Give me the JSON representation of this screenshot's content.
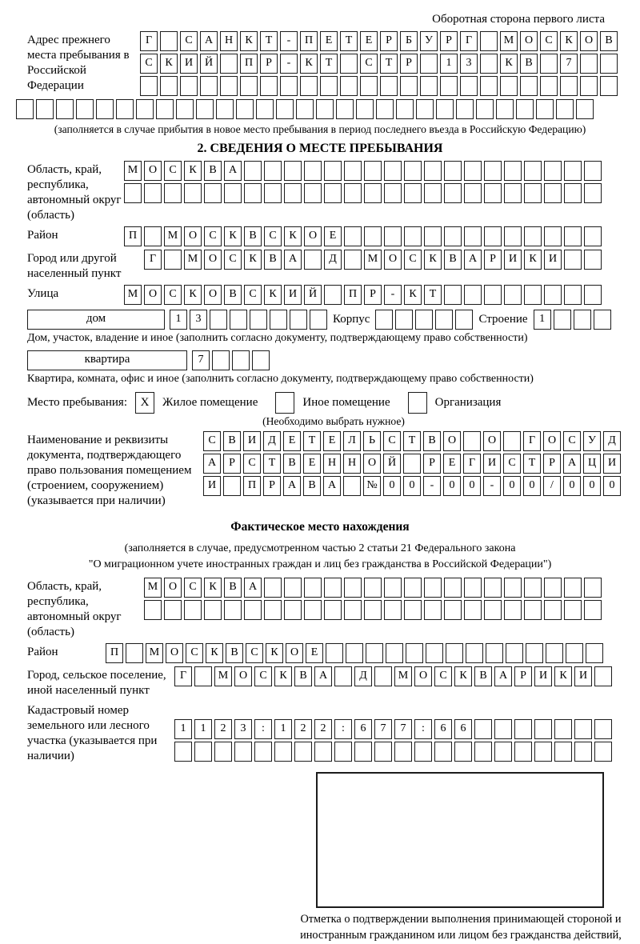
{
  "meta": {
    "header_note": "Оборотная сторона первого листа"
  },
  "prev_address": {
    "label": "Адрес прежнего места пребывания в Российской Федерации",
    "rows": [
      {
        "len": 24,
        "chars": "Г САНКТ-ПЕТЕРБУРГ МОСКОВ"
      },
      {
        "len": 24,
        "chars": "СКИЙ ПР-КТ СТР 13 КВ 7"
      },
      {
        "len": 24,
        "chars": ""
      },
      {
        "len": 29,
        "chars": ""
      }
    ],
    "footnote": "(заполняется в случае прибытия в новое место пребывания в период последнего въезда в Российскую Федерацию)"
  },
  "section2": {
    "title": "2. СВЕДЕНИЯ О МЕСТЕ ПРЕБЫВАНИЯ",
    "fields": {
      "region": {
        "label": "Область, край, республика, автономный округ (область)",
        "rows": [
          {
            "len": 24,
            "chars": "МОСКВА"
          },
          {
            "len": 24,
            "chars": ""
          }
        ]
      },
      "district": {
        "label": "Район",
        "rows": [
          {
            "len": 24,
            "chars": "П МОСКВСКОЕ"
          }
        ]
      },
      "city": {
        "label": "Город или другой населенный пункт",
        "rows": [
          {
            "len": 23,
            "chars": "Г МОСКВА Д МОСКВАРИКИ"
          }
        ]
      },
      "street": {
        "label": "Улица",
        "rows": [
          {
            "len": 24,
            "chars": "МОСКОВСКИЙ ПР-КТ"
          }
        ]
      }
    },
    "house_row": {
      "house_label": "дом",
      "house_boxes": {
        "len": 8,
        "chars": "13"
      },
      "korpus_label": "Корпус",
      "korpus_boxes": {
        "len": 5,
        "chars": ""
      },
      "stroenie_label": "Строение",
      "stroenie_boxes": {
        "len": 4,
        "chars": "1"
      }
    },
    "house_caption": "Дом, участок, владение и иное (заполнить согласно документу, подтверждающему право собственности)",
    "apartment_row": {
      "label": "квартира",
      "boxes": {
        "len": 4,
        "chars": "7"
      }
    },
    "apartment_caption": "Квартира, комната, офис и иное (заполнить согласно документу, подтверждающему право собственности)",
    "stay_type": {
      "label": "Место пребывания:",
      "options": [
        {
          "label": "Жилое помещение",
          "checked": true,
          "mark": "X"
        },
        {
          "label": "Иное помещение",
          "checked": false,
          "mark": ""
        },
        {
          "label": "Организация",
          "checked": false,
          "mark": ""
        }
      ],
      "note": "(Необходимо выбрать нужное)"
    },
    "document": {
      "label": "Наименование и реквизиты документа, подтверждающего право пользования помещением (строением, сооружением) (указывается при наличии)",
      "rows": [
        {
          "len": 21,
          "chars": "СВИДЕТЕЛЬСТВО О ГОСУД"
        },
        {
          "len": 21,
          "chars": "АРСТВЕННОЙ РЕГИСТРАЦИ"
        },
        {
          "len": 21,
          "chars": "И ПРАВА №00-00-00/000"
        }
      ]
    }
  },
  "actual_location": {
    "title": "Фактическое место нахождения",
    "subtitle1": "(заполняется в случае, предусмотренном частью 2 статьи 21 Федерального закона",
    "subtitle2": "\"О миграционном учете иностранных граждан и лиц без гражданства в Российской Федерации\")",
    "fields": {
      "region": {
        "label": "Область, край, республика, автономный округ (область)",
        "rows": [
          {
            "len": 23,
            "chars": "МОСКВА"
          },
          {
            "len": 23,
            "chars": ""
          }
        ]
      },
      "district": {
        "label": "Район",
        "rows": [
          {
            "len": 25,
            "chars": "П МОСКВСКОЕ"
          }
        ]
      },
      "city": {
        "label": "Город, сельское поселение, иной населенный пункт",
        "rows": [
          {
            "len": 22,
            "chars": "Г МОСКВА Д МОСКВАРИКИ"
          }
        ]
      },
      "cadastral": {
        "label": "Кадастровый номер земельного или лесного участка (указывается при наличии)",
        "rows": [
          {
            "len": 22,
            "chars": "1123:122:677:66"
          },
          {
            "len": 22,
            "chars": ""
          }
        ]
      }
    },
    "stamp_caption": "Отметка о подтверждении выполнения принимающей стороной и иностранным гражданином или лицом без гражданства действий, необходимых для его постановки на учет по месту пребывания"
  }
}
